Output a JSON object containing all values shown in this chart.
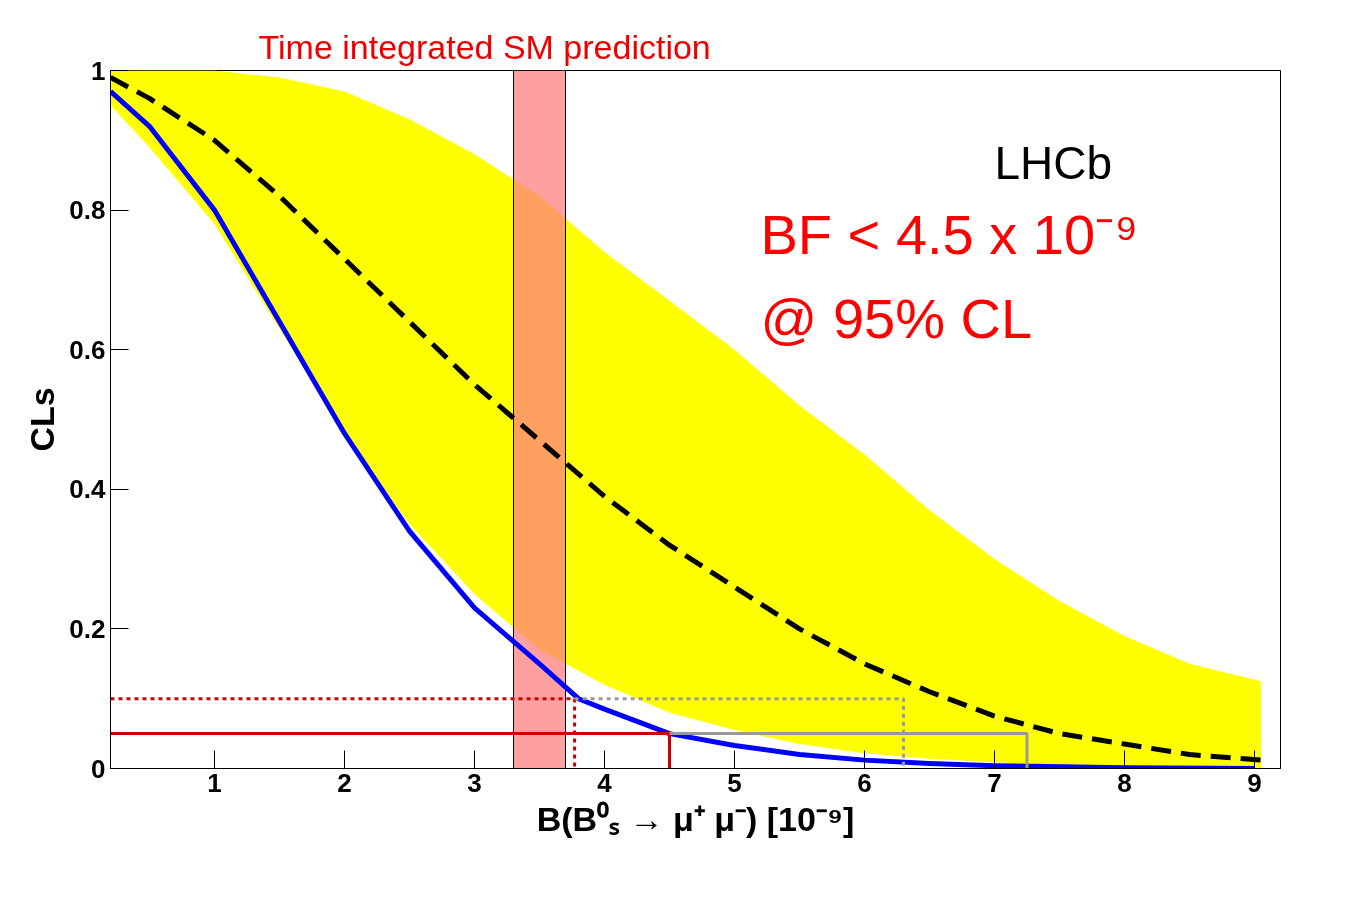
{
  "chart_data": {
    "type": "line",
    "xlabel": "B(B⁰ₛ → μ⁺ μ⁻) [10⁻⁹]",
    "ylabel": "CLs",
    "xlim": [
      0.2,
      9.2
    ],
    "ylim": [
      0,
      1
    ],
    "xticks": [
      1,
      2,
      3,
      4,
      5,
      6,
      7,
      8,
      9
    ],
    "yticks": [
      {
        "value": 0,
        "label": "0"
      },
      0.2,
      0.4,
      0.6,
      0.8,
      {
        "value": 1,
        "label": "1"
      }
    ],
    "grid": false,
    "marker": "none",
    "series": [
      {
        "color": "#000000",
        "line_style": "dashed",
        "x": [
          0.2,
          0.5,
          1,
          1.5,
          2,
          2.5,
          3,
          3.5,
          4,
          4.5,
          5,
          5.5,
          6,
          6.5,
          7,
          7.5,
          8,
          8.5,
          9.05
        ],
        "values": [
          0.99,
          0.96,
          0.9,
          0.82,
          0.73,
          0.64,
          0.55,
          0.47,
          0.39,
          0.32,
          0.26,
          0.2,
          0.15,
          0.11,
          0.075,
          0.05,
          0.035,
          0.02,
          0.012
        ],
        "lower": [
          0.95,
          0.89,
          0.78,
          0.63,
          0.48,
          0.35,
          0.25,
          0.17,
          0.12,
          0.08,
          0.055,
          0.035,
          0.022,
          0.014,
          0.009,
          0.005,
          0.003,
          0.001,
          0
        ],
        "upper": [
          1,
          1,
          1,
          0.99,
          0.97,
          0.93,
          0.88,
          0.82,
          0.74,
          0.67,
          0.6,
          0.52,
          0.45,
          0.37,
          0.3,
          0.24,
          0.19,
          0.15,
          0.125
        ]
      },
      {
        "color": "#0000ff",
        "line_style": "solid",
        "x": [
          0.2,
          0.5,
          1,
          1.5,
          2,
          2.5,
          3,
          3.5,
          3.8,
          4,
          4.5,
          5,
          5.5,
          6,
          6.5,
          7,
          8,
          9
        ],
        "values": [
          0.97,
          0.92,
          0.8,
          0.64,
          0.48,
          0.34,
          0.23,
          0.15,
          0.1,
          0.085,
          0.05,
          0.033,
          0.02,
          0.012,
          0.007,
          0.004,
          0.001,
          0
        ]
      },
      {
        "color": "#cc0000",
        "line_style": "dotted",
        "x": [
          0.2,
          3.77,
          3.77
        ],
        "values": [
          0.1,
          0.1,
          0
        ]
      },
      {
        "color": "#cc0000",
        "line_style": "solid",
        "x": [
          0.2,
          4.5,
          4.5
        ],
        "values": [
          0.05,
          0.05,
          0
        ]
      },
      {
        "color": "#999999",
        "line_style": "dotted",
        "x": [
          3.77,
          6.3,
          6.3
        ],
        "values": [
          0.1,
          0.1,
          0
        ]
      },
      {
        "color": "#999999",
        "line_style": "solid",
        "x": [
          4.5,
          7.25,
          7.25
        ],
        "values": [
          0.05,
          0.05,
          0
        ]
      }
    ],
    "bands": [
      {
        "axis": "x",
        "from": 3.3,
        "to": 3.7,
        "label": "Time integrated SM prediction",
        "color": "#ff8080"
      }
    ],
    "annotations": [
      "LHCb",
      "BF < 4.5 x 10⁻⁹",
      "@ 95% CL"
    ]
  }
}
